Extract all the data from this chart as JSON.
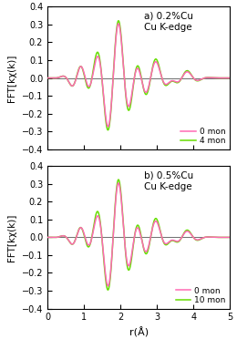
{
  "title_a": "a) 0.2%Cu\nCu K-edge",
  "title_b": "b) 0.5%Cu\nCu K-edge",
  "ylabel": "FFT[kχ(k)]",
  "xlabel": "r(Å)",
  "xlim": [
    0,
    5
  ],
  "ylim": [
    -0.4,
    0.4
  ],
  "yticks": [
    -0.4,
    -0.3,
    -0.2,
    -0.1,
    0,
    0.1,
    0.2,
    0.3,
    0.4
  ],
  "xticks": [
    0,
    1,
    2,
    3,
    4,
    5
  ],
  "color_pink": "#FF69B4",
  "color_green": "#66DD00",
  "legend_a": [
    "0 mon",
    "4 mon"
  ],
  "legend_b": [
    "0 mon",
    "10 mon"
  ],
  "figsize": [
    2.6,
    3.72
  ],
  "dpi": 100
}
